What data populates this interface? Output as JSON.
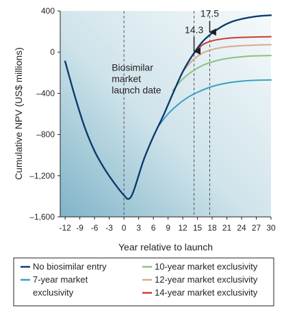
{
  "chart_data": {
    "type": "line",
    "xlabel": "Year relative to launch",
    "ylabel": "Cumulative NPV (US$ millions)",
    "xlim": [
      -13,
      30
    ],
    "ylim": [
      -1600,
      400
    ],
    "x_ticks": [
      -12,
      -9,
      -6,
      -3,
      0,
      3,
      6,
      9,
      12,
      15,
      18,
      21,
      24,
      27,
      30
    ],
    "x_tick_labels": [
      "-12",
      "-9",
      "-6",
      "-3",
      "0",
      "3",
      "6",
      "9",
      "12",
      "15",
      "18",
      "21",
      "24",
      "27",
      "30"
    ],
    "y_ticks": [
      400,
      0,
      -400,
      -800,
      -1200,
      -1600
    ],
    "y_tick_labels": [
      "400",
      "0",
      "–400",
      "–800",
      "–1,200",
      "–1,600"
    ],
    "grid": false,
    "legend_position": "bottom",
    "series": [
      {
        "name": "No biosimilar entry",
        "color": "#0d3a6b",
        "x": [
          -12,
          -10,
          -8,
          -6,
          -4,
          -2,
          0,
          1,
          2,
          4,
          6,
          8,
          10,
          12,
          14,
          16,
          18,
          20,
          22,
          24,
          26,
          28,
          30
        ],
        "y": [
          -90,
          -430,
          -730,
          -960,
          -1130,
          -1270,
          -1390,
          -1425,
          -1345,
          -1050,
          -820,
          -620,
          -400,
          -190,
          -30,
          100,
          185,
          250,
          295,
          322,
          340,
          352,
          358
        ]
      },
      {
        "name": "7-year market exclusivity",
        "color": "#3a9ec4",
        "x": [
          7,
          9,
          11,
          13,
          15,
          17,
          19,
          21,
          23,
          25,
          27,
          30
        ],
        "y": [
          -720,
          -600,
          -510,
          -440,
          -390,
          -350,
          -320,
          -300,
          -287,
          -278,
          -273,
          -270
        ]
      },
      {
        "name": "10-year market exclusivity",
        "color": "#8dc07f",
        "x": [
          10,
          12,
          14,
          16,
          18,
          20,
          22,
          24,
          26,
          28,
          30
        ],
        "y": [
          -370,
          -260,
          -185,
          -130,
          -95,
          -70,
          -55,
          -45,
          -38,
          -35,
          -33
        ]
      },
      {
        "name": "12-year market exclusivity",
        "color": "#d9a88c",
        "x": [
          12,
          14,
          16,
          18,
          20,
          22,
          24,
          26,
          28,
          30
        ],
        "y": [
          -190,
          -80,
          -10,
          25,
          45,
          56,
          63,
          67,
          70,
          72
        ]
      },
      {
        "name": "14-year market exclusivity",
        "color": "#cc3b34",
        "x": [
          14,
          16,
          18,
          20,
          22,
          24,
          26,
          28,
          30
        ],
        "y": [
          -30,
          70,
          110,
          128,
          138,
          143,
          146,
          148,
          150
        ]
      }
    ],
    "vlines": [
      0,
      14.3,
      17.5
    ],
    "annotations": [
      {
        "text": "Biosimilar",
        "x": -2.5,
        "y": -180
      },
      {
        "text": "market",
        "x": -2.5,
        "y": -290
      },
      {
        "text": "launch date",
        "x": -2.5,
        "y": -400
      },
      {
        "text": "14.3",
        "x": 14.3,
        "y": 185
      },
      {
        "text": "17.5",
        "x": 17.5,
        "y": 345
      }
    ],
    "arrows": [
      {
        "x": 14.3,
        "y_from": 150,
        "y_to": 10
      },
      {
        "x": 17.5,
        "y_from": 300,
        "y_to": 195
      }
    ],
    "legend_order": [
      [
        "No biosimilar entry"
      ],
      [
        "7-year market",
        "exclusivity"
      ],
      [
        "10-year market exclusivity"
      ],
      [
        "12-year market exclusivity"
      ],
      [
        "14-year market exclusivity"
      ]
    ]
  }
}
